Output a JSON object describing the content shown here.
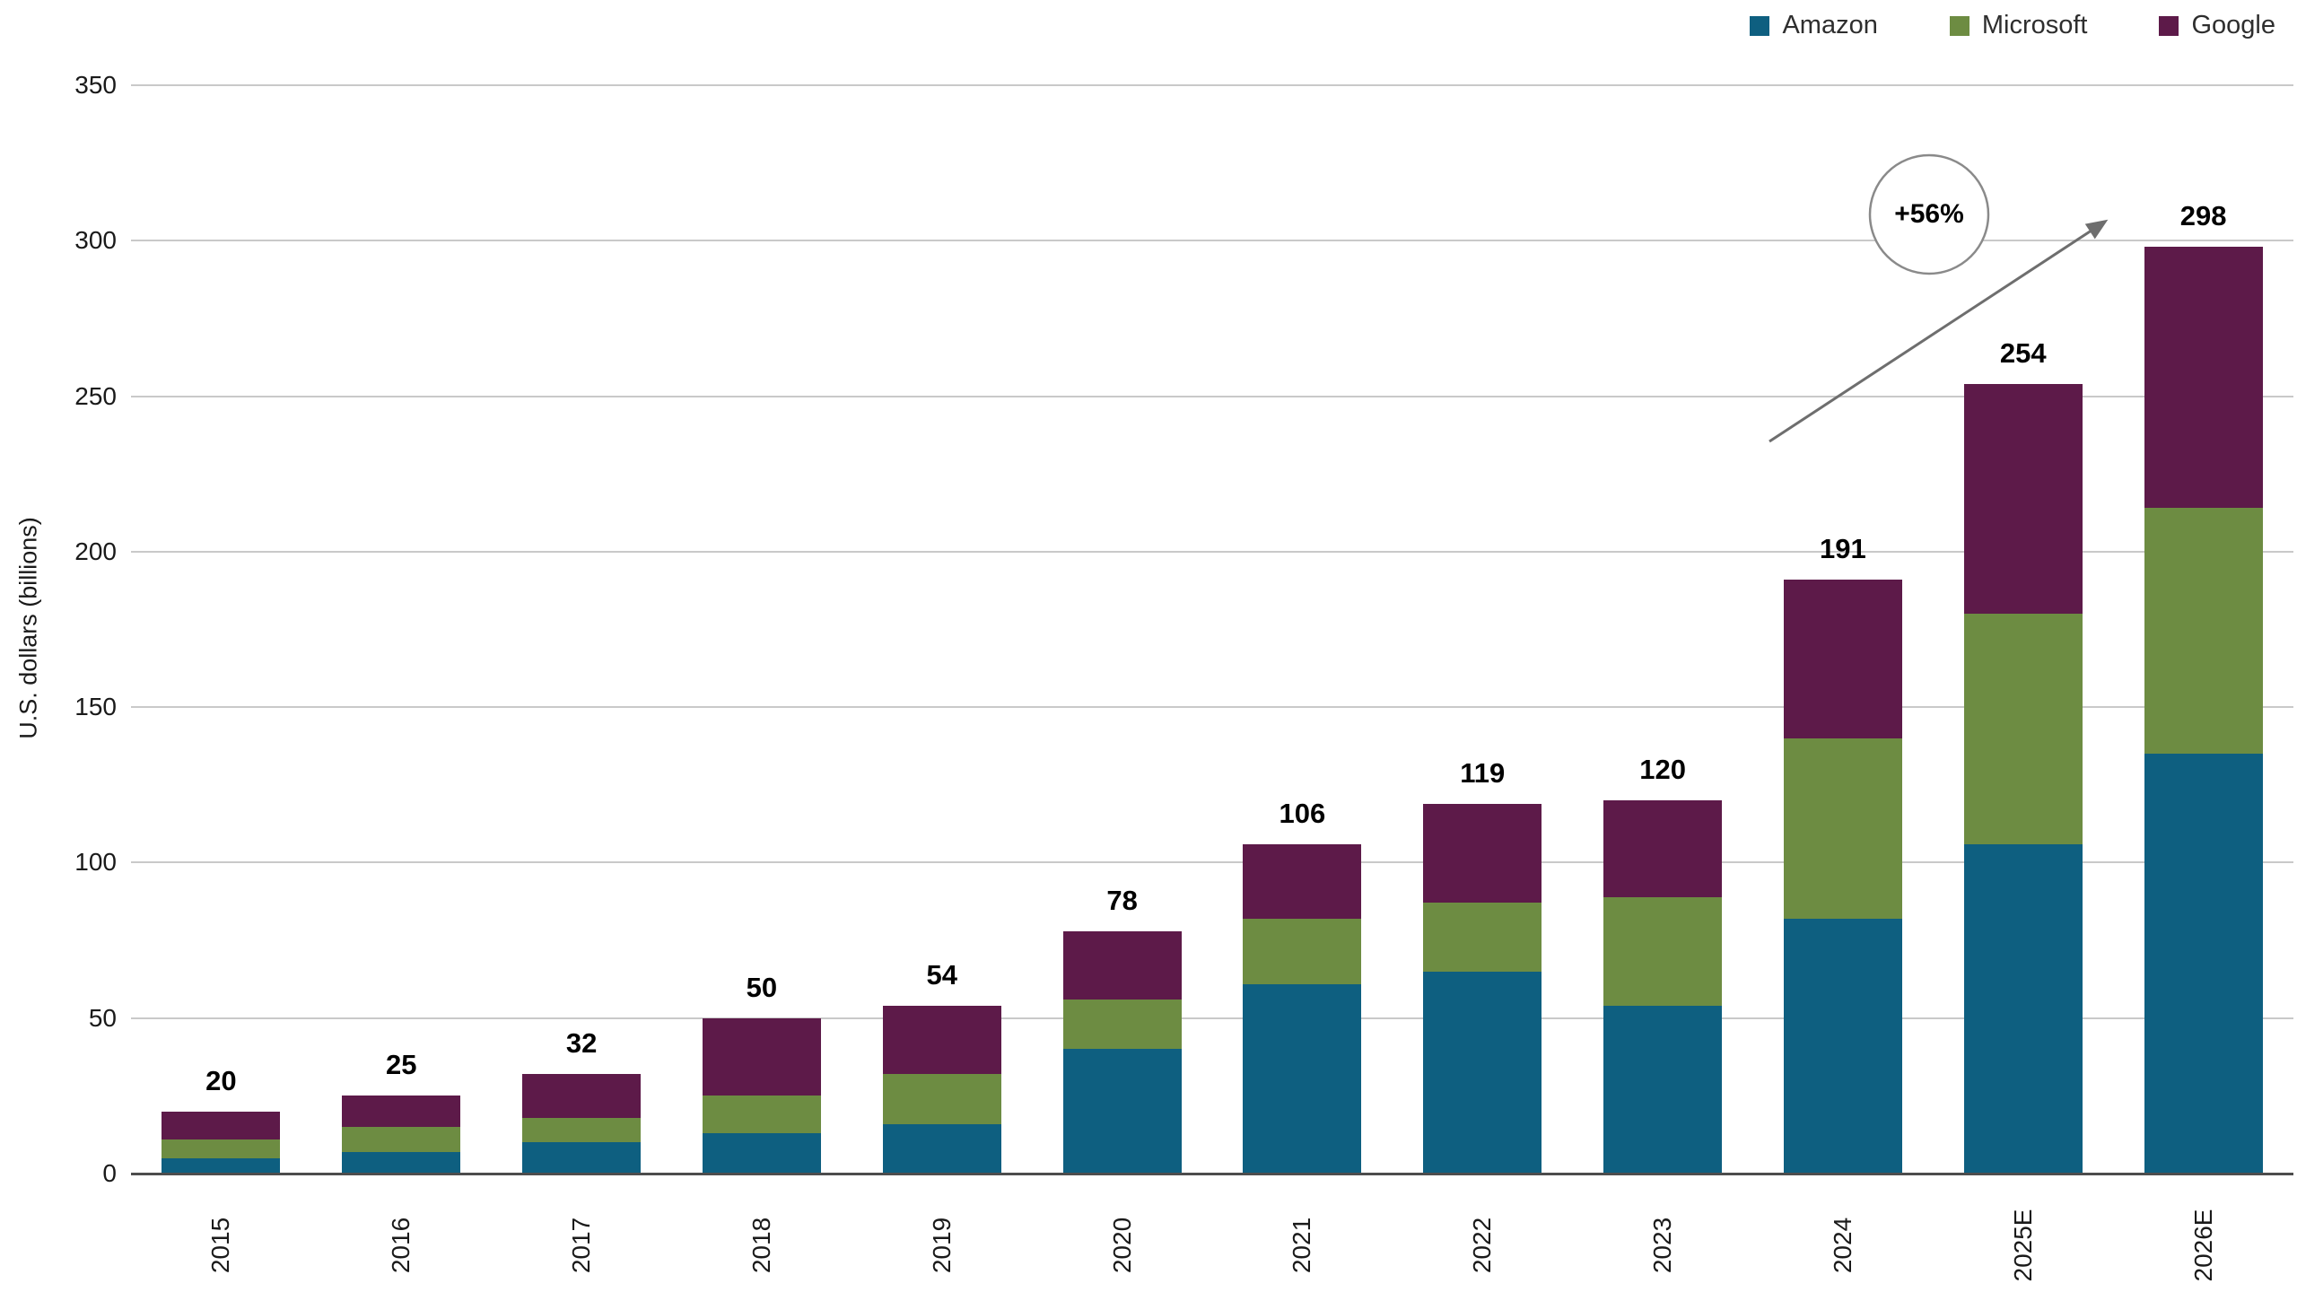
{
  "chart_data": {
    "type": "bar",
    "stacked": true,
    "title": "",
    "xlabel": "",
    "ylabel": "U.S. dollars (billions)",
    "ylim": [
      0,
      350
    ],
    "yticks": [
      0,
      50,
      100,
      150,
      200,
      250,
      300,
      350
    ],
    "grid": true,
    "legend_position": "top-right",
    "categories": [
      "2015",
      "2016",
      "2017",
      "2018",
      "2019",
      "2020",
      "2021",
      "2022",
      "2023",
      "2024",
      "2025E",
      "2026E"
    ],
    "series": [
      {
        "name": "Amazon",
        "color": "#0e5f80",
        "values": [
          5,
          7,
          10,
          13,
          16,
          40,
          61,
          65,
          54,
          82,
          106,
          135
        ]
      },
      {
        "name": "Microsoft",
        "color": "#6d8c42",
        "values": [
          6,
          8,
          8,
          12,
          16,
          16,
          21,
          22,
          35,
          58,
          74,
          79
        ]
      },
      {
        "name": "Google",
        "color": "#5d1a49",
        "values": [
          9,
          10,
          14,
          25,
          22,
          22,
          24,
          32,
          31,
          51,
          74,
          84
        ]
      }
    ],
    "totals": [
      20,
      25,
      32,
      50,
      54,
      78,
      106,
      119,
      120,
      191,
      254,
      298
    ],
    "annotation": {
      "label": "+56%"
    },
    "colors": {
      "gridline": "#c9c9c9",
      "baseline": "#4d4d4d",
      "arrow": "#6e6e6e",
      "text": "#1a1a1a"
    }
  }
}
